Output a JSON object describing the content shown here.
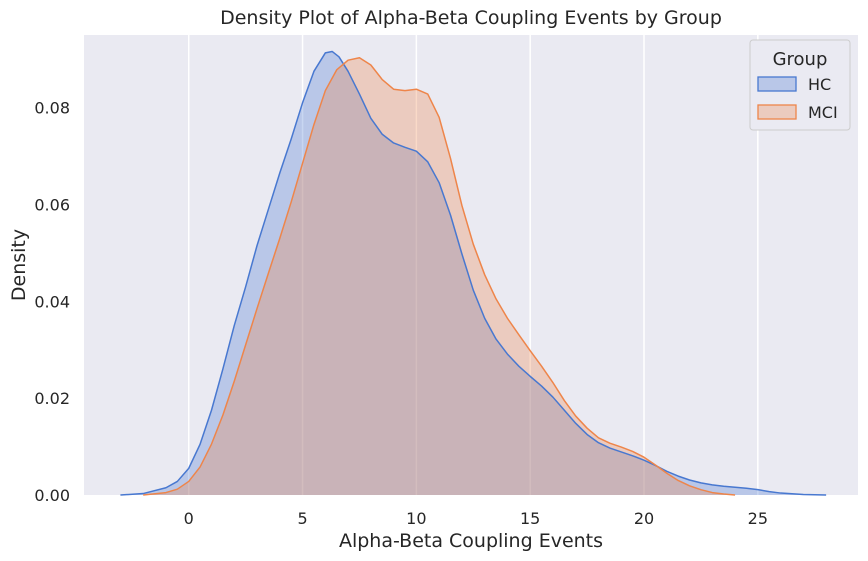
{
  "chart_data": {
    "type": "area",
    "title": "Density Plot of Alpha-Beta Coupling Events by Group",
    "xlabel": "Alpha-Beta Coupling Events",
    "ylabel": "Density",
    "xlim": [
      -4.6,
      29.4
    ],
    "ylim": [
      0,
      0.095
    ],
    "x_ticks": [
      0,
      5,
      10,
      15,
      20,
      25
    ],
    "y_ticks": [
      0.0,
      0.02,
      0.04,
      0.06,
      0.08
    ],
    "y_tick_labels": [
      "0.00",
      "0.02",
      "0.04",
      "0.06",
      "0.08"
    ],
    "grid": true,
    "legend": {
      "title": "Group",
      "placement": "top-right"
    },
    "series": [
      {
        "name": "HC",
        "color": "#4878d0",
        "x": [
          -3,
          -2,
          -1,
          -0.5,
          0,
          0.5,
          1,
          1.5,
          2,
          2.5,
          3,
          3.5,
          4,
          4.5,
          5,
          5.5,
          6,
          6.3,
          6.6,
          7,
          7.5,
          8,
          8.5,
          9,
          9.5,
          10,
          10.5,
          11,
          11.5,
          12,
          12.5,
          13,
          13.5,
          14,
          14.5,
          15,
          15.5,
          16,
          16.5,
          17,
          17.5,
          18,
          18.5,
          19,
          19.5,
          20,
          20.5,
          21,
          21.5,
          22,
          22.5,
          23,
          23.5,
          24,
          24.5,
          25,
          25.5,
          26,
          27,
          28
        ],
        "values": [
          0.0,
          0.0003,
          0.0015,
          0.0028,
          0.0055,
          0.0105,
          0.0175,
          0.026,
          0.035,
          0.043,
          0.0515,
          0.059,
          0.0665,
          0.0735,
          0.081,
          0.0875,
          0.0913,
          0.0916,
          0.0905,
          0.0875,
          0.0828,
          0.0778,
          0.0745,
          0.0727,
          0.0718,
          0.071,
          0.0688,
          0.0645,
          0.0578,
          0.0498,
          0.0423,
          0.0365,
          0.0322,
          0.0291,
          0.0266,
          0.0245,
          0.0225,
          0.0202,
          0.0175,
          0.0148,
          0.0125,
          0.0108,
          0.0097,
          0.0089,
          0.0081,
          0.0072,
          0.0061,
          0.0049,
          0.0039,
          0.0031,
          0.0025,
          0.0021,
          0.0018,
          0.0016,
          0.0014,
          0.0011,
          0.0007,
          0.0004,
          0.0001,
          0.0
        ]
      },
      {
        "name": "MCI",
        "color": "#ee854a",
        "x": [
          -2,
          -1,
          -0.5,
          0,
          0.5,
          1,
          1.5,
          2,
          2.5,
          3,
          3.5,
          4,
          4.5,
          5,
          5.5,
          6,
          6.5,
          7,
          7.5,
          8,
          8.5,
          9,
          9.5,
          10,
          10.5,
          11,
          11.5,
          12,
          12.5,
          13,
          13.5,
          14,
          14.5,
          15,
          15.5,
          16,
          16.5,
          17,
          17.5,
          18,
          18.5,
          19,
          19.5,
          20,
          20.5,
          21,
          21.5,
          22,
          22.5,
          23,
          23.5,
          24
        ],
        "values": [
          0.0,
          0.0005,
          0.0012,
          0.0028,
          0.0058,
          0.0105,
          0.0165,
          0.0235,
          0.031,
          0.0385,
          0.0458,
          0.053,
          0.0605,
          0.0685,
          0.0765,
          0.0835,
          0.0878,
          0.0898,
          0.0903,
          0.0888,
          0.0858,
          0.0838,
          0.0835,
          0.0838,
          0.0828,
          0.078,
          0.0695,
          0.0598,
          0.0518,
          0.0455,
          0.0405,
          0.0365,
          0.0331,
          0.0298,
          0.0266,
          0.0232,
          0.0195,
          0.0163,
          0.0138,
          0.0118,
          0.0107,
          0.0099,
          0.009,
          0.0078,
          0.0062,
          0.0045,
          0.003,
          0.0019,
          0.0011,
          0.0005,
          0.0002,
          0.0
        ]
      }
    ]
  }
}
